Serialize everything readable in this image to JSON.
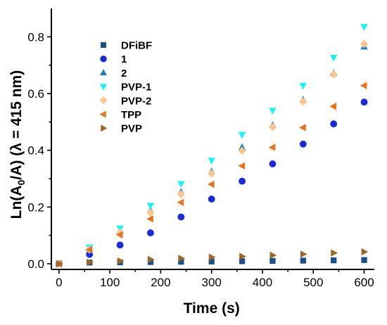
{
  "chart_data": {
    "type": "scatter",
    "title": "",
    "xlabel": "Time (s)",
    "ylabel_main": "Ln(A",
    "ylabel_sub": "0",
    "ylabel_rest": "/A) (λ = 415 nm)",
    "xlim": [
      -15,
      620
    ],
    "ylim": [
      -0.02,
      0.9
    ],
    "xticks": [
      0,
      100,
      200,
      300,
      400,
      500,
      600
    ],
    "xtick_labels": [
      "0",
      "100",
      "200",
      "300",
      "400",
      "500",
      "600"
    ],
    "yticks": [
      0.0,
      0.2,
      0.4,
      0.6,
      0.8
    ],
    "ytick_labels": [
      "0.0",
      "0.2",
      "0.4",
      "0.6",
      "0.8"
    ],
    "grid": false,
    "legend_position": "top-left",
    "x": [
      0,
      60,
      120,
      180,
      240,
      300,
      360,
      420,
      480,
      540,
      600
    ],
    "series": [
      {
        "name": "DFiBF",
        "marker": "square",
        "color": "#17508f",
        "values": [
          0.0,
          0.004,
          0.005,
          0.006,
          0.007,
          0.008,
          0.009,
          0.01,
          0.011,
          0.012,
          0.013
        ]
      },
      {
        "name": "1",
        "marker": "circle",
        "color": "#1a2bdd",
        "values": [
          0.0,
          0.033,
          0.066,
          0.109,
          0.165,
          0.228,
          0.291,
          0.352,
          0.422,
          0.493,
          0.57
        ]
      },
      {
        "name": "2",
        "marker": "triangle-up",
        "color": "#1f7fc2",
        "values": [
          0.0,
          0.055,
          0.115,
          0.187,
          0.253,
          0.325,
          0.41,
          0.488,
          0.578,
          0.672,
          0.765
        ]
      },
      {
        "name": "PVP-1",
        "marker": "triangle-down",
        "color": "#16f3f9",
        "values": [
          0.0,
          0.058,
          0.125,
          0.205,
          0.282,
          0.364,
          0.455,
          0.54,
          0.628,
          0.727,
          0.835
        ]
      },
      {
        "name": "PVP-2",
        "marker": "diamond",
        "color": "#ffc58c",
        "values": [
          0.0,
          0.05,
          0.11,
          0.18,
          0.245,
          0.318,
          0.398,
          0.482,
          0.572,
          0.668,
          0.775
        ]
      },
      {
        "name": "TPP",
        "marker": "triangle-left",
        "color": "#e8731c",
        "values": [
          0.0,
          0.05,
          0.102,
          0.158,
          0.216,
          0.28,
          0.345,
          0.41,
          0.48,
          0.555,
          0.628
        ]
      },
      {
        "name": "PVP",
        "marker": "triangle-right",
        "color": "#9d6625",
        "values": [
          0.0,
          0.005,
          0.01,
          0.015,
          0.019,
          0.023,
          0.026,
          0.03,
          0.034,
          0.038,
          0.042
        ]
      }
    ]
  }
}
